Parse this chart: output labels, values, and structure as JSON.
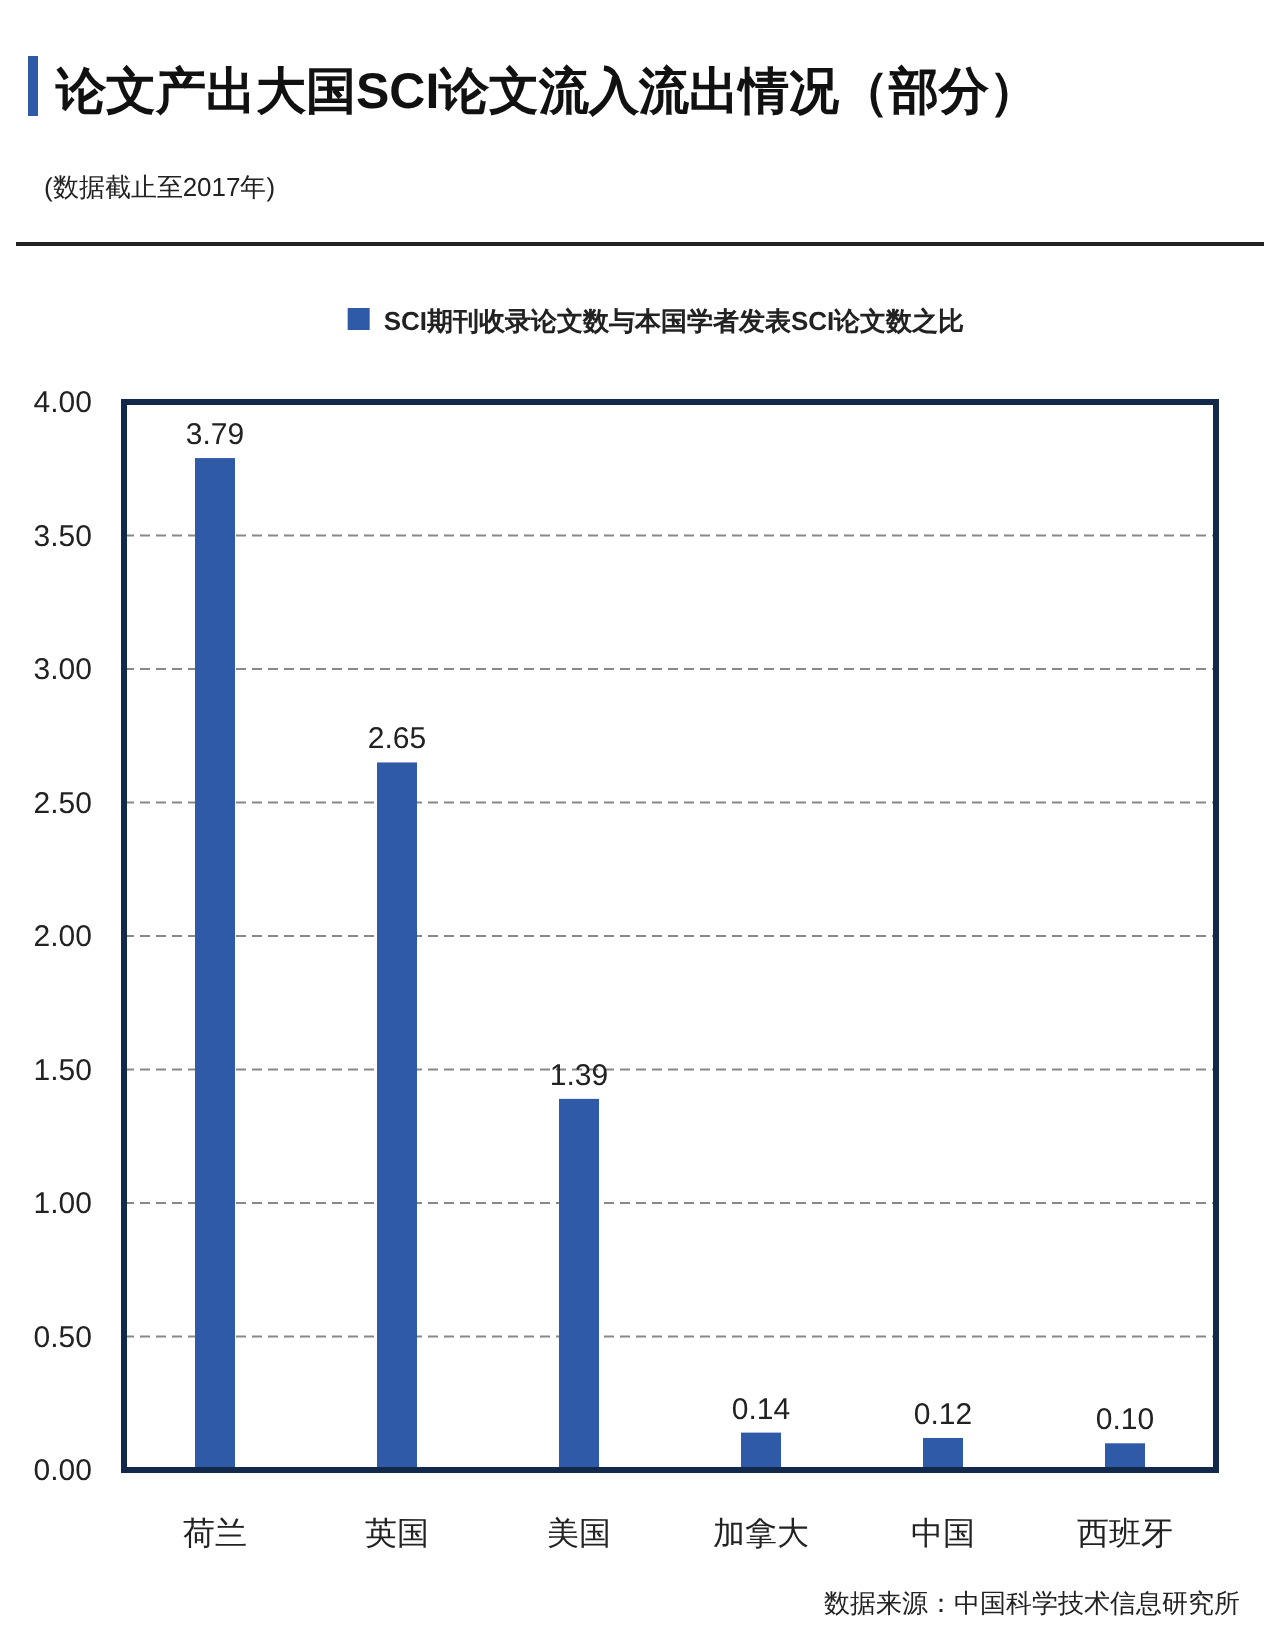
{
  "chart_data": {
    "type": "bar",
    "title": "论文产出大国SCI论文流入流出情况（部分）",
    "subtitle": "(数据截止至2017年)",
    "categories": [
      "荷兰",
      "英国",
      "美国",
      "加拿大",
      "中国",
      "西班牙"
    ],
    "series": [
      {
        "name": "SCI期刊收录论文数与本国学者发表SCI论文数之比",
        "color": "#2f5aa8",
        "values": [
          3.79,
          2.65,
          1.39,
          0.14,
          0.12,
          0.1
        ],
        "value_labels": [
          "3.79",
          "2.65",
          "1.39",
          "0.14",
          "0.12",
          "0.10"
        ]
      }
    ],
    "ylim": [
      0,
      4
    ],
    "yticks": [
      {
        "value": 0,
        "label": "0.00"
      },
      {
        "value": 0.5,
        "label": "0.50"
      },
      {
        "value": 1,
        "label": "1.00"
      },
      {
        "value": 1.5,
        "label": "1.50"
      },
      {
        "value": 2,
        "label": "2.00"
      },
      {
        "value": 2.5,
        "label": "2.50"
      },
      {
        "value": 3,
        "label": "3.00"
      },
      {
        "value": 3.5,
        "label": "3.50"
      },
      {
        "value": 4,
        "label": "4.00"
      }
    ],
    "grid": "y",
    "legend": "top",
    "annotations": [
      "数据来源：中国科学技术信息研究所"
    ]
  }
}
